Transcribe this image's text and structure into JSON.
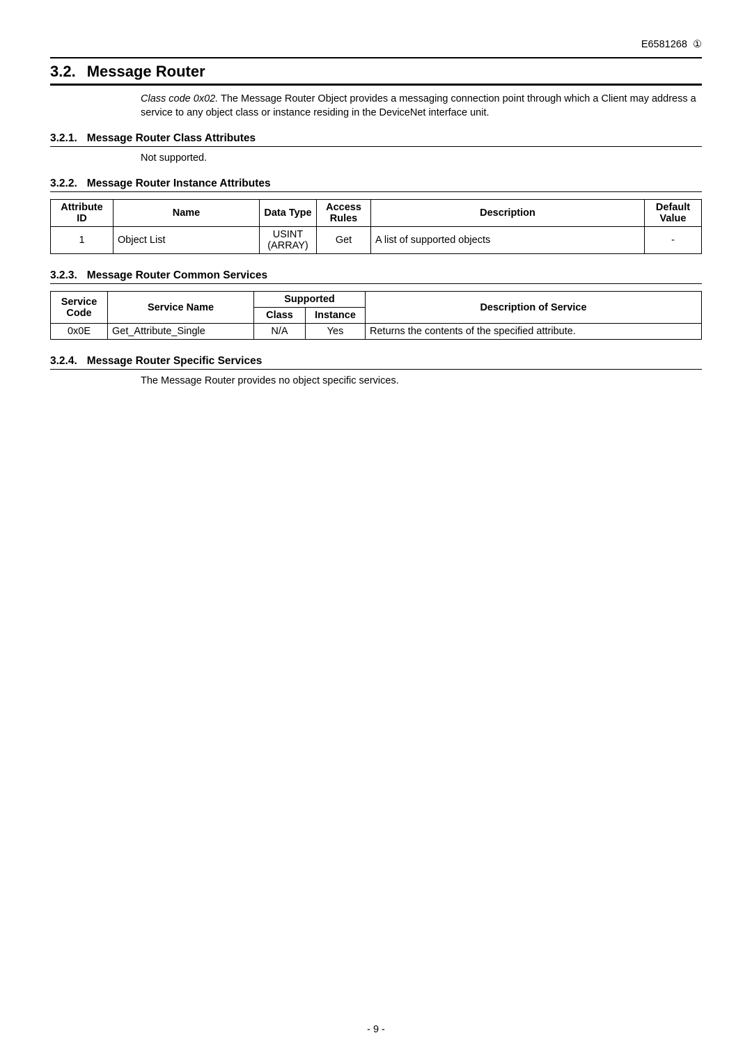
{
  "header": {
    "doc_id": "E6581268",
    "rev_glyph": "①"
  },
  "section": {
    "num": "3.2.",
    "title": "Message Router",
    "intro_prefix": "Class code 0x02.",
    "intro_rest": " The Message Router Object provides a messaging connection point through which a Client may address a service to any object class or instance residing in the DeviceNet interface unit."
  },
  "sub1": {
    "num": "3.2.1.",
    "title": "Message Router Class Attributes",
    "body": "Not supported."
  },
  "sub2": {
    "num": "3.2.2.",
    "title": "Message Router Instance Attributes"
  },
  "table1": {
    "headers": {
      "c1": "Attribute ID",
      "c2": "Name",
      "c3": "Data Type",
      "c4": "Access Rules",
      "c5": "Description",
      "c6": "Default Value"
    },
    "row": {
      "c1": "1",
      "c2": "Object List",
      "c3a": "USINT",
      "c3b": "(ARRAY)",
      "c4": "Get",
      "c5": "A list of supported objects",
      "c6": "-"
    }
  },
  "sub3": {
    "num": "3.2.3.",
    "title": "Message Router Common Services"
  },
  "table2": {
    "headers": {
      "c1": "Service Code",
      "c2": "Service Name",
      "sup": "Supported",
      "c3": "Class",
      "c4": "Instance",
      "c5": "Description of Service"
    },
    "row": {
      "c1": "0x0E",
      "c2": "Get_Attribute_Single",
      "c3": "N/A",
      "c4": "Yes",
      "c5": "Returns the contents of the specified attribute."
    }
  },
  "sub4": {
    "num": "3.2.4.",
    "title": "Message Router Specific Services",
    "body": "The Message Router provides no object specific services."
  },
  "footer": {
    "page": "- 9 -"
  }
}
